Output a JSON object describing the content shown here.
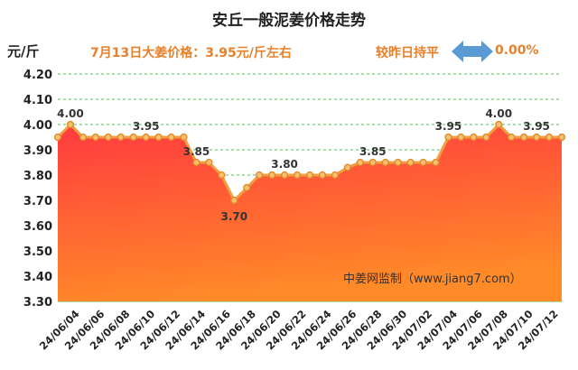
{
  "header": {
    "title": "安丘一般泥姜价格走势",
    "unit": "元/斤",
    "price_info": "7月13日大姜价格：3.95元/斤左右",
    "compare_label": "较昨日持平",
    "change_value": "0.00%",
    "arrow_icon": "left-right-arrow-icon"
  },
  "watermark": "中姜网监制（www.jiang7.com）",
  "colors": {
    "line": "#f0a040",
    "marker_fill": "#f6c070",
    "marker_stroke": "#e08a2a",
    "area_top": "#ff3a40",
    "area_bottom": "#ff8a28",
    "grid": "#5fb95f",
    "arrow": "#5b9bd5"
  },
  "chart_data": {
    "type": "area",
    "ylim": [
      3.3,
      4.2
    ],
    "yticks": [
      "3.30",
      "3.40",
      "3.50",
      "3.60",
      "3.70",
      "3.80",
      "3.90",
      "4.00",
      "4.10",
      "4.20"
    ],
    "grid": "horizontal dashed",
    "x_tick_labels": [
      "24/06/04",
      "24/06/06",
      "24/06/08",
      "24/06/10",
      "24/06/12",
      "24/06/14",
      "24/06/16",
      "24/06/18",
      "24/06/20",
      "24/06/22",
      "24/06/24",
      "24/06/26",
      "24/06/28",
      "24/06/30",
      "24/07/02",
      "24/07/04",
      "24/07/06",
      "24/07/08",
      "24/07/10",
      "24/07/12"
    ],
    "x": [
      "24/06/03",
      "24/06/04",
      "24/06/05",
      "24/06/06",
      "24/06/07",
      "24/06/08",
      "24/06/09",
      "24/06/10",
      "24/06/11",
      "24/06/12",
      "24/06/13",
      "24/06/14",
      "24/06/15",
      "24/06/16",
      "24/06/17",
      "24/06/18",
      "24/06/19",
      "24/06/20",
      "24/06/21",
      "24/06/22",
      "24/06/23",
      "24/06/24",
      "24/06/25",
      "24/06/26",
      "24/06/27",
      "24/06/28",
      "24/06/29",
      "24/06/30",
      "24/07/01",
      "24/07/02",
      "24/07/03",
      "24/07/04",
      "24/07/05",
      "24/07/06",
      "24/07/07",
      "24/07/08",
      "24/07/09",
      "24/07/10",
      "24/07/11",
      "24/07/12",
      "24/07/13"
    ],
    "values": [
      3.95,
      4.0,
      3.95,
      3.95,
      3.95,
      3.95,
      3.95,
      3.95,
      3.95,
      3.95,
      3.95,
      3.85,
      3.85,
      3.8,
      3.7,
      3.75,
      3.8,
      3.8,
      3.8,
      3.8,
      3.8,
      3.8,
      3.8,
      3.83,
      3.85,
      3.85,
      3.85,
      3.85,
      3.85,
      3.85,
      3.85,
      3.95,
      3.95,
      3.95,
      3.95,
      4.0,
      3.95,
      3.95,
      3.95,
      3.95,
      3.95
    ],
    "data_labels": [
      {
        "x": "24/06/04",
        "text": "4.00",
        "pos": "above"
      },
      {
        "x": "24/06/10",
        "text": "3.95",
        "pos": "above"
      },
      {
        "x": "24/06/14",
        "text": "3.85",
        "pos": "above"
      },
      {
        "x": "24/06/17",
        "text": "3.70",
        "pos": "below"
      },
      {
        "x": "24/06/21",
        "text": "3.80",
        "pos": "above"
      },
      {
        "x": "24/06/28",
        "text": "3.85",
        "pos": "above"
      },
      {
        "x": "24/07/04",
        "text": "3.95",
        "pos": "above"
      },
      {
        "x": "24/07/08",
        "text": "4.00",
        "pos": "above"
      },
      {
        "x": "24/07/11",
        "text": "3.95",
        "pos": "above"
      }
    ]
  }
}
